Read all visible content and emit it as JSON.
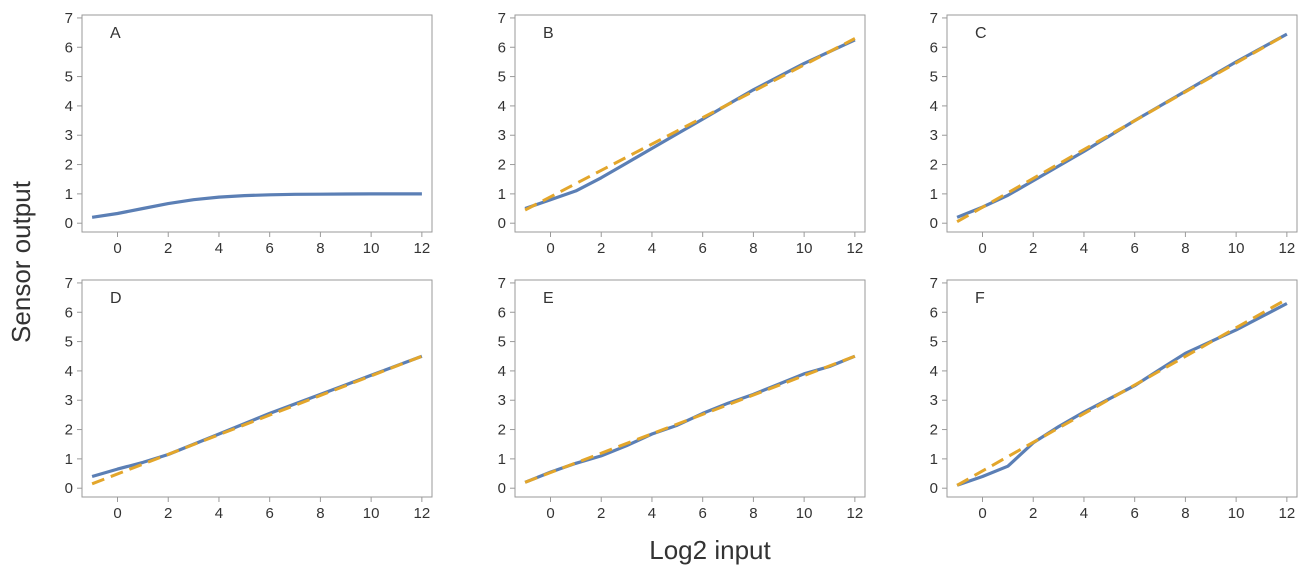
{
  "figure": {
    "ylabel": "Sensor output",
    "xlabel": "Log2 input"
  },
  "chart_data": [
    {
      "type": "line",
      "panel_label": "A",
      "xlim": [
        -1.4,
        12.4
      ],
      "ylim": [
        -0.3,
        7.1
      ],
      "xticks": [
        0,
        2,
        4,
        6,
        8,
        10,
        12
      ],
      "yticks": [
        0,
        1,
        2,
        3,
        4,
        5,
        6,
        7
      ],
      "series": [
        {
          "color": "#5b7fb5",
          "style": "solid",
          "x": [
            -1,
            0,
            1,
            2,
            3,
            4,
            5,
            6,
            7,
            8,
            9,
            10,
            11,
            12
          ],
          "y": [
            0.2,
            0.33,
            0.5,
            0.67,
            0.8,
            0.89,
            0.94,
            0.97,
            0.985,
            0.99,
            0.995,
            1.0,
            1.0,
            1.0
          ]
        }
      ]
    },
    {
      "type": "line",
      "panel_label": "B",
      "xlim": [
        -1.4,
        12.4
      ],
      "ylim": [
        -0.3,
        7.1
      ],
      "xticks": [
        0,
        2,
        4,
        6,
        8,
        10,
        12
      ],
      "yticks": [
        0,
        1,
        2,
        3,
        4,
        5,
        6,
        7
      ],
      "series": [
        {
          "color": "#5b7fb5",
          "style": "solid",
          "x": [
            -1,
            0,
            1,
            2,
            3,
            4,
            5,
            6,
            7,
            8,
            9,
            10,
            11,
            12
          ],
          "y": [
            0.5,
            0.8,
            1.1,
            1.55,
            2.05,
            2.55,
            3.05,
            3.55,
            4.05,
            4.55,
            5.0,
            5.45,
            5.85,
            6.25
          ]
        },
        {
          "color": "#e3a62b",
          "style": "dashed",
          "x": [
            -1,
            12
          ],
          "y": [
            0.45,
            6.3
          ]
        }
      ]
    },
    {
      "type": "line",
      "panel_label": "C",
      "xlim": [
        -1.4,
        12.4
      ],
      "ylim": [
        -0.3,
        7.1
      ],
      "xticks": [
        0,
        2,
        4,
        6,
        8,
        10,
        12
      ],
      "yticks": [
        0,
        1,
        2,
        3,
        4,
        5,
        6,
        7
      ],
      "series": [
        {
          "color": "#5b7fb5",
          "style": "solid",
          "x": [
            -1,
            0,
            1,
            2,
            4,
            6,
            8,
            10,
            12
          ],
          "y": [
            0.2,
            0.55,
            0.95,
            1.45,
            2.45,
            3.5,
            4.5,
            5.5,
            6.45
          ]
        },
        {
          "color": "#e3a62b",
          "style": "dashed",
          "x": [
            -1,
            12
          ],
          "y": [
            0.05,
            6.45
          ]
        }
      ]
    },
    {
      "type": "line",
      "panel_label": "D",
      "xlim": [
        -1.4,
        12.4
      ],
      "ylim": [
        -0.3,
        7.1
      ],
      "xticks": [
        0,
        2,
        4,
        6,
        8,
        10,
        12
      ],
      "yticks": [
        0,
        1,
        2,
        3,
        4,
        5,
        6,
        7
      ],
      "series": [
        {
          "color": "#5b7fb5",
          "style": "solid",
          "x": [
            -1,
            0,
            1,
            2,
            4,
            6,
            8,
            10,
            12
          ],
          "y": [
            0.4,
            0.65,
            0.88,
            1.15,
            1.85,
            2.55,
            3.2,
            3.85,
            4.5
          ]
        },
        {
          "color": "#e3a62b",
          "style": "dashed",
          "x": [
            -1,
            12
          ],
          "y": [
            0.15,
            4.5
          ]
        }
      ]
    },
    {
      "type": "line",
      "panel_label": "E",
      "xlim": [
        -1.4,
        12.4
      ],
      "ylim": [
        -0.3,
        7.1
      ],
      "xticks": [
        0,
        2,
        4,
        6,
        8,
        10,
        12
      ],
      "yticks": [
        0,
        1,
        2,
        3,
        4,
        5,
        6,
        7
      ],
      "series": [
        {
          "color": "#5b7fb5",
          "style": "solid",
          "x": [
            -1,
            0,
            1,
            2,
            3,
            4,
            5,
            6,
            7,
            8,
            9,
            10,
            11,
            12
          ],
          "y": [
            0.2,
            0.55,
            0.85,
            1.1,
            1.45,
            1.85,
            2.15,
            2.55,
            2.9,
            3.2,
            3.55,
            3.9,
            4.15,
            4.5
          ]
        },
        {
          "color": "#e3a62b",
          "style": "dashed",
          "x": [
            -1,
            12
          ],
          "y": [
            0.2,
            4.5
          ]
        }
      ]
    },
    {
      "type": "line",
      "panel_label": "F",
      "xlim": [
        -1.4,
        12.4
      ],
      "ylim": [
        -0.3,
        7.1
      ],
      "xticks": [
        0,
        2,
        4,
        6,
        8,
        10,
        12
      ],
      "yticks": [
        0,
        1,
        2,
        3,
        4,
        5,
        6,
        7
      ],
      "series": [
        {
          "color": "#5b7fb5",
          "style": "solid",
          "x": [
            -1,
            0,
            1,
            2,
            3,
            4,
            5,
            6,
            7,
            8,
            9,
            10,
            11,
            12
          ],
          "y": [
            0.1,
            0.4,
            0.75,
            1.55,
            2.1,
            2.6,
            3.05,
            3.5,
            4.05,
            4.6,
            5.0,
            5.4,
            5.85,
            6.3
          ]
        },
        {
          "color": "#e3a62b",
          "style": "dashed",
          "x": [
            -1,
            12
          ],
          "y": [
            0.1,
            6.45
          ]
        }
      ]
    }
  ]
}
